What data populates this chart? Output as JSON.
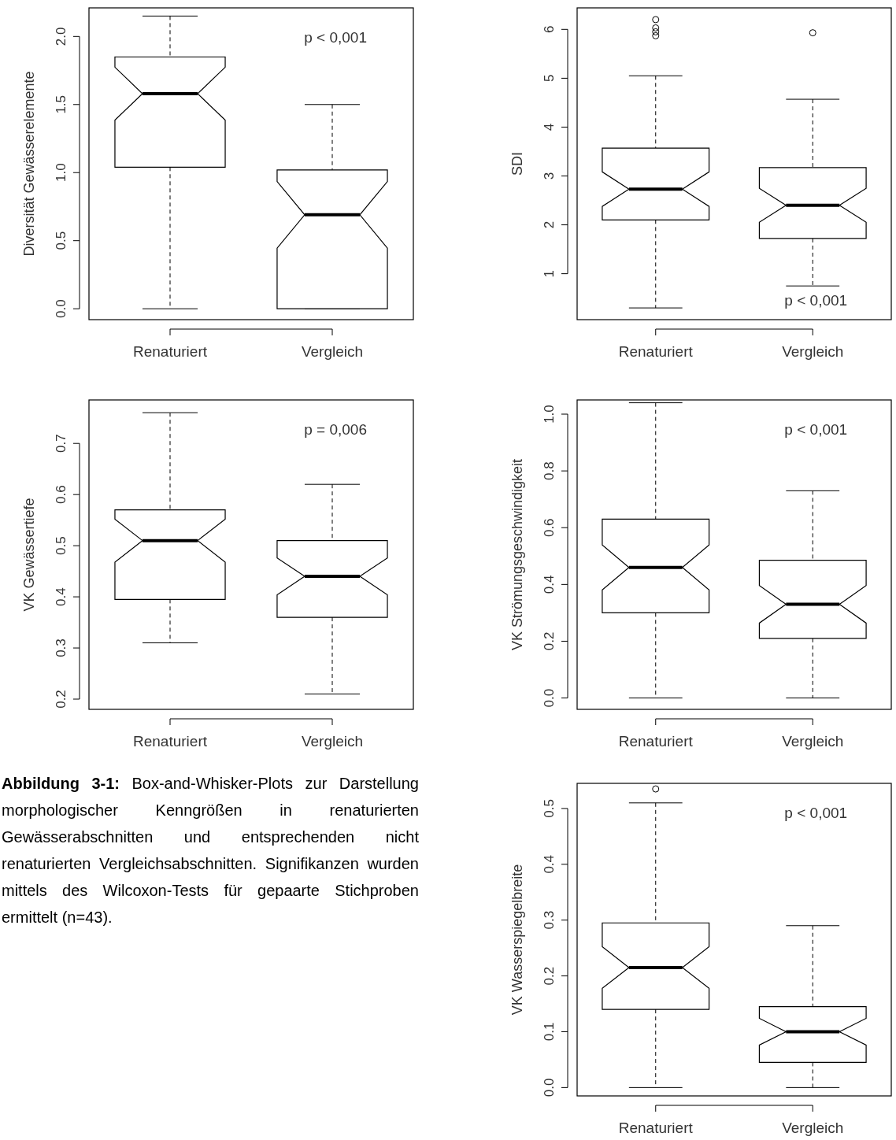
{
  "chart_data": [
    {
      "type": "box",
      "ylabel": "Diversität Gewässerelemente",
      "categories": [
        "Renaturiert",
        "Vergleich"
      ],
      "ylim": [
        -0.08,
        2.21
      ],
      "yticks": [
        {
          "value": 0,
          "label": "0.0"
        },
        {
          "value": 0.5,
          "label": "0.5"
        },
        {
          "value": 1,
          "label": "1.0"
        },
        {
          "value": 1.5,
          "label": "1.5"
        },
        {
          "value": 2,
          "label": "2.0"
        }
      ],
      "annotations": [
        "p < 0,001"
      ],
      "boxes": [
        {
          "low": 0,
          "q1": 1.04,
          "median": 1.58,
          "q3": 1.85,
          "high": 2.15
        },
        {
          "low": 0,
          "q1": 0,
          "median": 0.69,
          "q3": 1.02,
          "high": 1.5
        }
      ]
    },
    {
      "type": "box",
      "ylabel": "SDI",
      "categories": [
        "Renaturiert",
        "Vergleich"
      ],
      "ylim": [
        0.06,
        6.44
      ],
      "yticks": [
        1,
        2,
        3,
        4,
        5,
        6
      ],
      "annotations": [
        "p < 0,001"
      ],
      "boxes": [
        {
          "low": 0.3,
          "q1": 2.1,
          "median": 2.73,
          "q3": 3.57,
          "high": 5.05,
          "outliers": [
            5.87,
            5.95,
            6.03,
            6.2
          ]
        },
        {
          "low": 0.75,
          "q1": 1.72,
          "median": 2.4,
          "q3": 3.17,
          "high": 4.57,
          "outliers": [
            5.93
          ]
        }
      ]
    },
    {
      "type": "box",
      "ylabel": "VK Gewässertiefe",
      "categories": [
        "Renaturiert",
        "Vergleich"
      ],
      "ylim": [
        0.18,
        0.785
      ],
      "yticks": [
        0.2,
        0.3,
        0.4,
        0.5,
        0.6,
        0.7
      ],
      "annotations": [
        "p = 0,006"
      ],
      "boxes": [
        {
          "low": 0.31,
          "q1": 0.395,
          "median": 0.51,
          "q3": 0.57,
          "high": 0.76
        },
        {
          "low": 0.21,
          "q1": 0.36,
          "median": 0.44,
          "q3": 0.51,
          "high": 0.62
        }
      ]
    },
    {
      "type": "box",
      "ylabel": "VK Strömungsgeschwindigkeit",
      "categories": [
        "Renaturiert",
        "Vergleich"
      ],
      "ylim": [
        -0.04,
        1.05
      ],
      "yticks": [
        {
          "value": 0,
          "label": "0.0"
        },
        0.2,
        0.4,
        0.6,
        0.8,
        {
          "value": 1,
          "label": "1.0"
        }
      ],
      "annotations": [
        "p < 0,001"
      ],
      "boxes": [
        {
          "low": 0,
          "q1": 0.3,
          "median": 0.46,
          "q3": 0.63,
          "high": 1.04
        },
        {
          "low": 0,
          "q1": 0.21,
          "median": 0.33,
          "q3": 0.485,
          "high": 0.73
        }
      ]
    },
    {
      "type": "box",
      "ylabel": "VK Wasserspiegelbreite",
      "categories": [
        "Renaturiert",
        "Vergleich"
      ],
      "ylim": [
        -0.015,
        0.545
      ],
      "yticks": [
        {
          "value": 0,
          "label": "0.0"
        },
        0.1,
        0.2,
        0.3,
        0.4,
        0.5
      ],
      "annotations": [
        "p < 0,001"
      ],
      "boxes": [
        {
          "low": 0,
          "q1": 0.14,
          "median": 0.215,
          "q3": 0.295,
          "high": 0.51,
          "outliers": [
            0.535
          ]
        },
        {
          "low": 0,
          "q1": 0.045,
          "median": 0.1,
          "q3": 0.145,
          "high": 0.29
        }
      ]
    },
    {
      "type": "other",
      "title": "Abbildung 3-1:",
      "subtitle": "Box-and-Whisker-Plots zur Darstellung morphologischer Kenngrößen in renaturierten Gewässerabschnitten und entsprechenden nicht renaturierten Vergleichsabschnitten. Signifikanzen wurden mittels des Wilcoxon-Tests für gepaarte Stichproben ermittelt (n=43)."
    }
  ]
}
